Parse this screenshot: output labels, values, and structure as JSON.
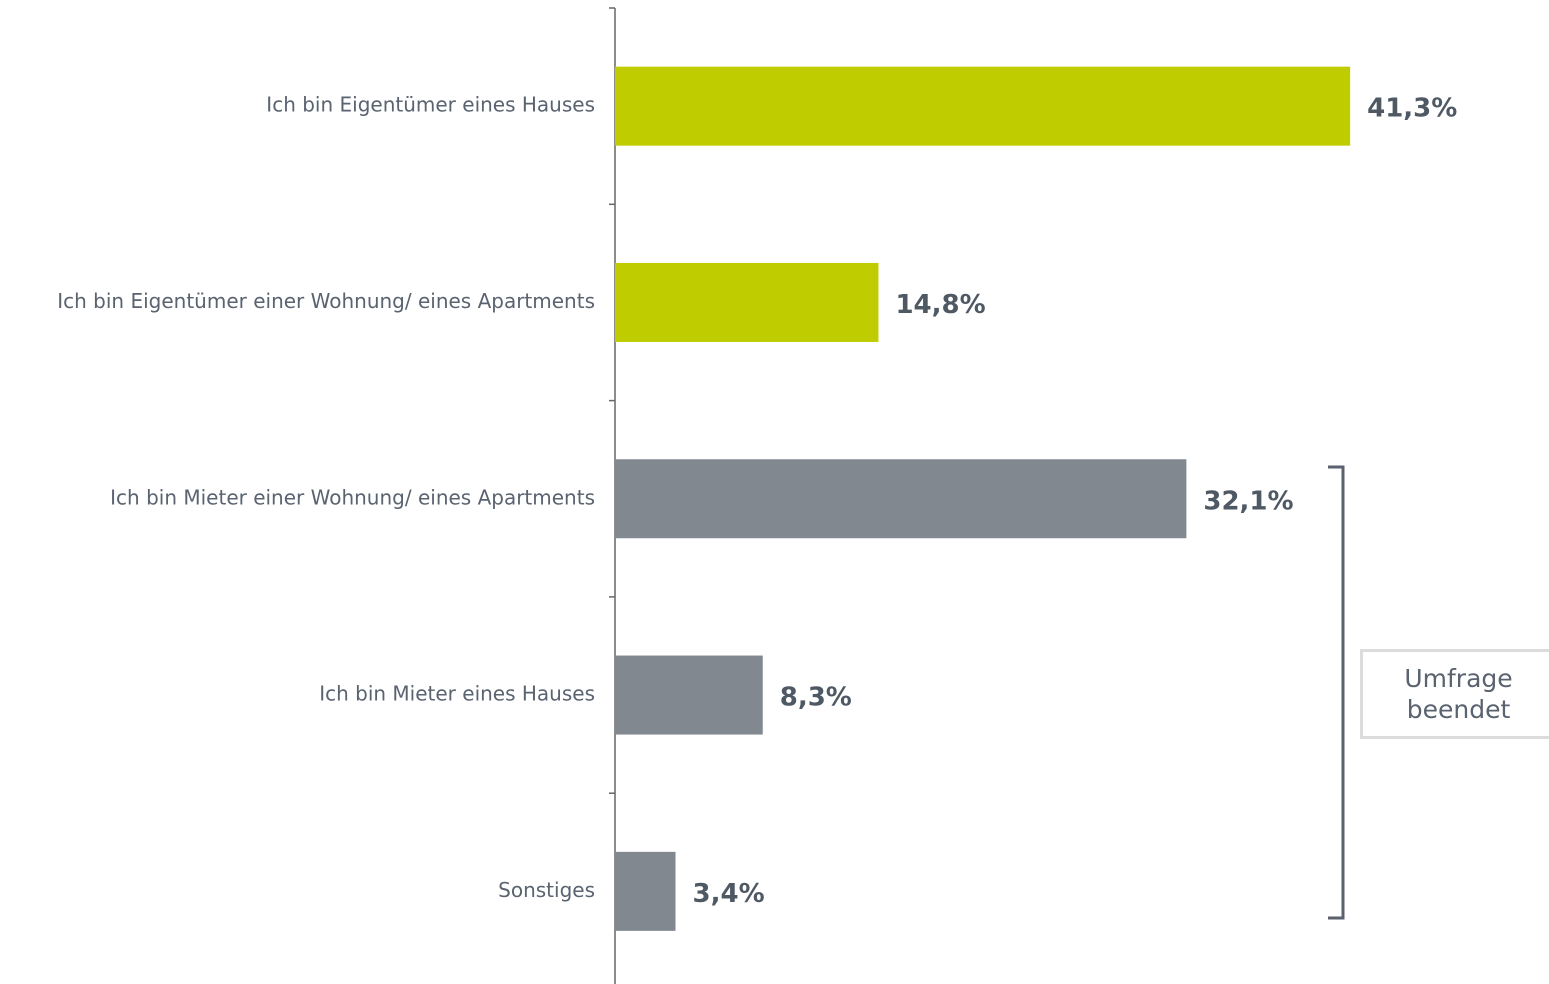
{
  "chart_data": {
    "type": "bar",
    "orientation": "horizontal",
    "categories": [
      "Ich bin Eigentümer eines Hauses",
      "Ich bin Eigentümer einer Wohnung/ eines Apartments",
      "Ich bin Mieter einer Wohnung/ eines Apartments",
      "Ich bin Mieter eines Hauses",
      "Sonstiges"
    ],
    "values": [
      41.3,
      14.8,
      32.1,
      8.3,
      3.4
    ],
    "value_labels": [
      "41,3%",
      "14,8%",
      "32,1%",
      "8,3%",
      "3,4%"
    ],
    "colors": [
      "#bfcd00",
      "#bfcd00",
      "#818890",
      "#818890",
      "#818890"
    ],
    "annotation": "Umfrage beendet"
  }
}
